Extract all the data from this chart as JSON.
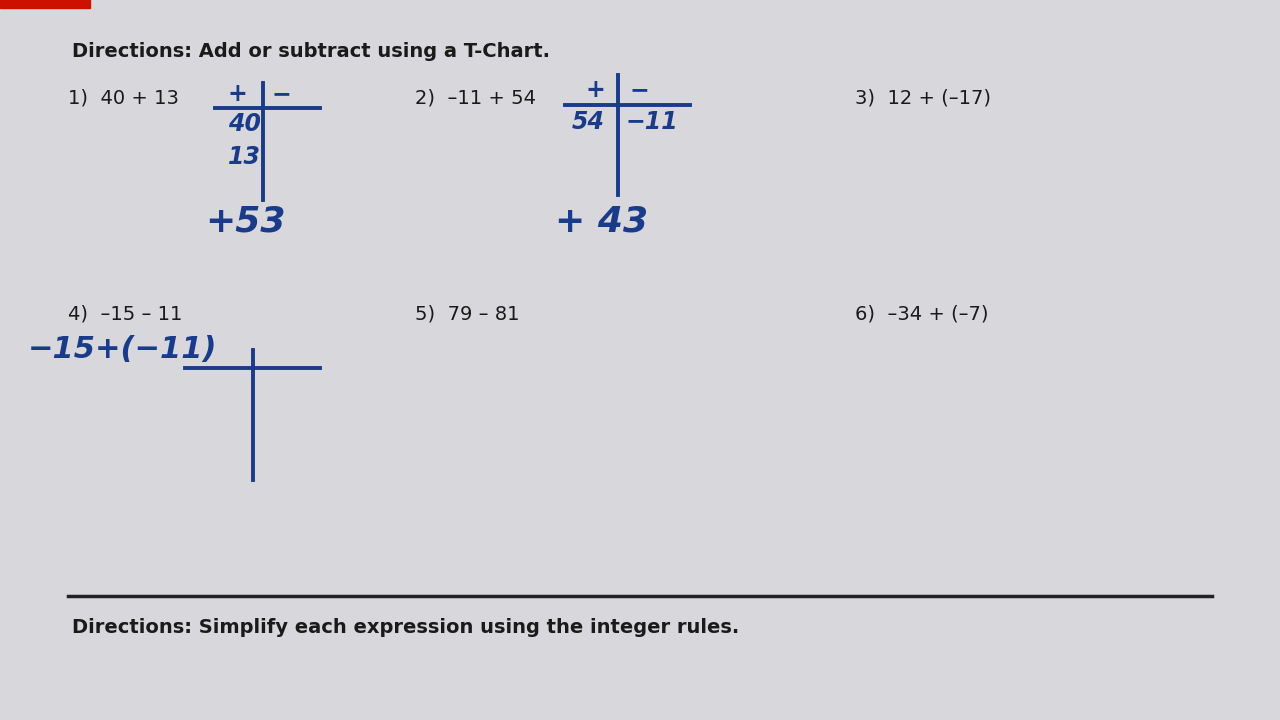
{
  "bg_color": "#d8d8dc",
  "paper_color": "#e8e8ec",
  "title1": "Directions: Add or subtract using a T-Chart.",
  "title2": "Directions: Simplify each expression using the integer rules.",
  "hw_color": "#1a3a8a",
  "txt_color": "#1a1a1a",
  "red_bar_color": "#cc2200",
  "divider_color": "#222222",
  "p1_label": "1)  40 + 13",
  "p2_label": "2)  –11 + 54",
  "p3_label": "3)  12 + (–17)",
  "p4_label": "4)  –15 – 11",
  "p5_label": "5)  79 – 81",
  "p6_label": "6)  –34 + (–7)",
  "p1_tchart_plus": "+",
  "p1_tchart_minus": "−",
  "p1_val1": "40",
  "p1_val2": "13",
  "p1_answer": "+53",
  "p2_tchart_plus": "+",
  "p2_tchart_minus": "−",
  "p2_val_plus": "54",
  "p2_val_minus": "−11",
  "p2_answer": "+ 43",
  "p4_rewrite": "−15+(−11)",
  "top_bar_color": "#cc1100"
}
